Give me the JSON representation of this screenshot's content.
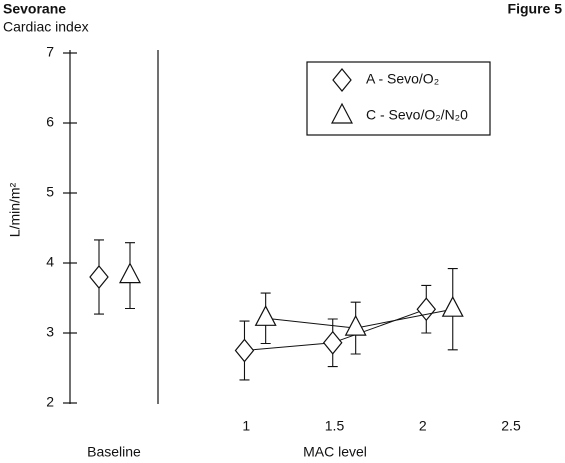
{
  "chart_data": {
    "type": "errorline",
    "title": "Sevorane",
    "subtitle": "Cardiac index",
    "figure_label": "Figure 5",
    "y_label": "L/min/m²",
    "x_label": "MAC level",
    "baseline_label": "Baseline",
    "xlim": [
      0.5,
      2.5
    ],
    "xticks": [
      1,
      1.5,
      2,
      2.5
    ],
    "ylim": [
      2,
      7
    ],
    "yticks": [
      2,
      3,
      4,
      5,
      6,
      7
    ],
    "series": [
      {
        "name": "A - Sevo/O₂",
        "marker": "diamond",
        "color": "#111111",
        "baseline": 3.8,
        "baseline_error": 0.53,
        "x": [
          0.99,
          1.49,
          2.02
        ],
        "values": [
          2.75,
          2.86,
          3.34
        ],
        "errors": [
          0.42,
          0.34,
          0.34
        ]
      },
      {
        "name": "C - Sevo/O₂/N₂0",
        "marker": "triangle",
        "color": "#111111",
        "baseline": 3.82,
        "baseline_error": 0.47,
        "x": [
          1.11,
          1.62,
          2.17
        ],
        "values": [
          3.21,
          3.07,
          3.34
        ],
        "errors": [
          0.36,
          0.37,
          0.58
        ]
      }
    ]
  }
}
